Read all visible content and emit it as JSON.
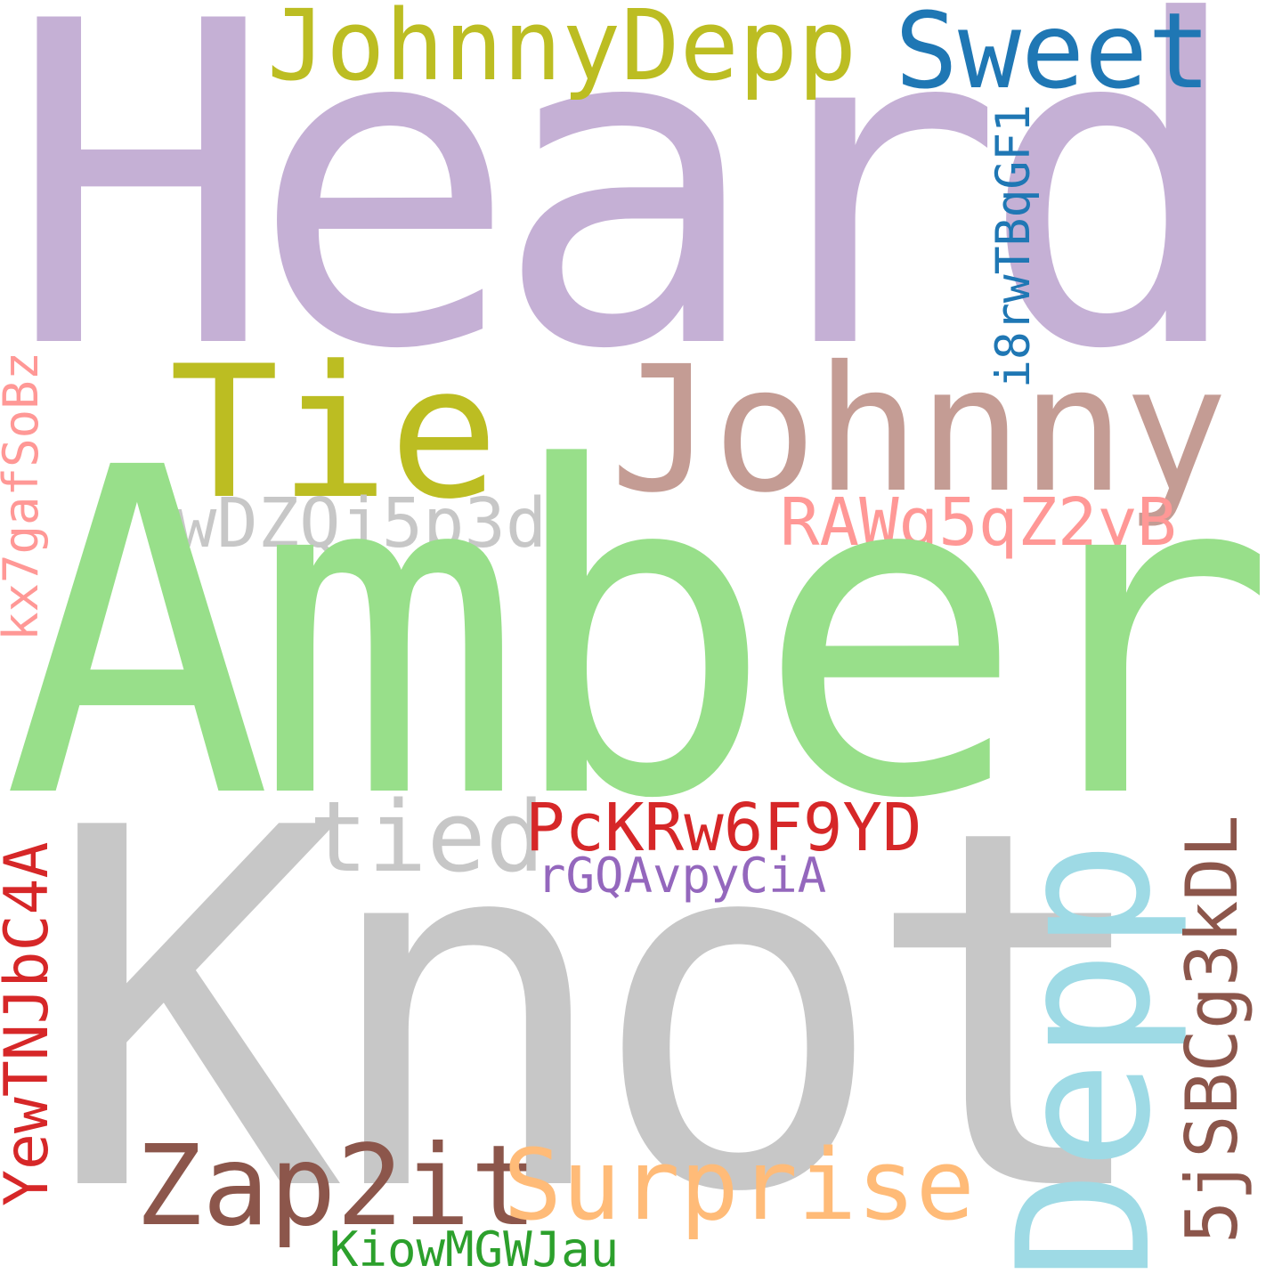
{
  "words": {
    "heard": "Heard",
    "amber": "Amber",
    "knot": "Knot",
    "johnny": "Johnny",
    "tie": "Tie",
    "johnnydepp": "JohnnyDepp",
    "sweet": "Sweet",
    "depp": "Depp",
    "i8rwtbqgf1": "i8rwTBqGF1",
    "kx7gafsobz": "kx7gafSoBz",
    "wdzqj5p3dj": "wDZQj5p3dj",
    "rawg5qz2yb": "RAWg5qZ2yB",
    "tied": "tied",
    "pckrw6f9yd": "PcKRw6F9YD",
    "rgqavpycia": "rGQAvpyCiA",
    "yewtnjbc4a": "YewTNJbC4A",
    "sjsbcg3kdl": "5jSBCg3kDL",
    "zap2it": "Zap2it",
    "surprise": "Surprise",
    "kiowmgwjau": "KiowMGWJau"
  },
  "colors": {
    "heard": "#c5b0d5",
    "amber": "#98df8a",
    "knot": "#c7c7c7",
    "johnny": "#c49c94",
    "tie": "#bcbd22",
    "johnnydepp": "#bcbd22",
    "sweet": "#1f77b4",
    "depp": "#9edae5",
    "i8rwtbqgf1": "#1f77b4",
    "kx7gafsobz": "#ff9896",
    "wdzqj5p3dj": "#c7c7c7",
    "rawg5qz2yb": "#ff9896",
    "tied": "#c7c7c7",
    "pckrw6f9yd": "#d62728",
    "rgqavpycia": "#9467bd",
    "yewtnjbc4a": "#d62728",
    "sjsbcg3kdl": "#8c564b",
    "zap2it": "#8c564b",
    "surprise": "#ffbb78",
    "kiowmgwjau": "#2ca02c"
  }
}
